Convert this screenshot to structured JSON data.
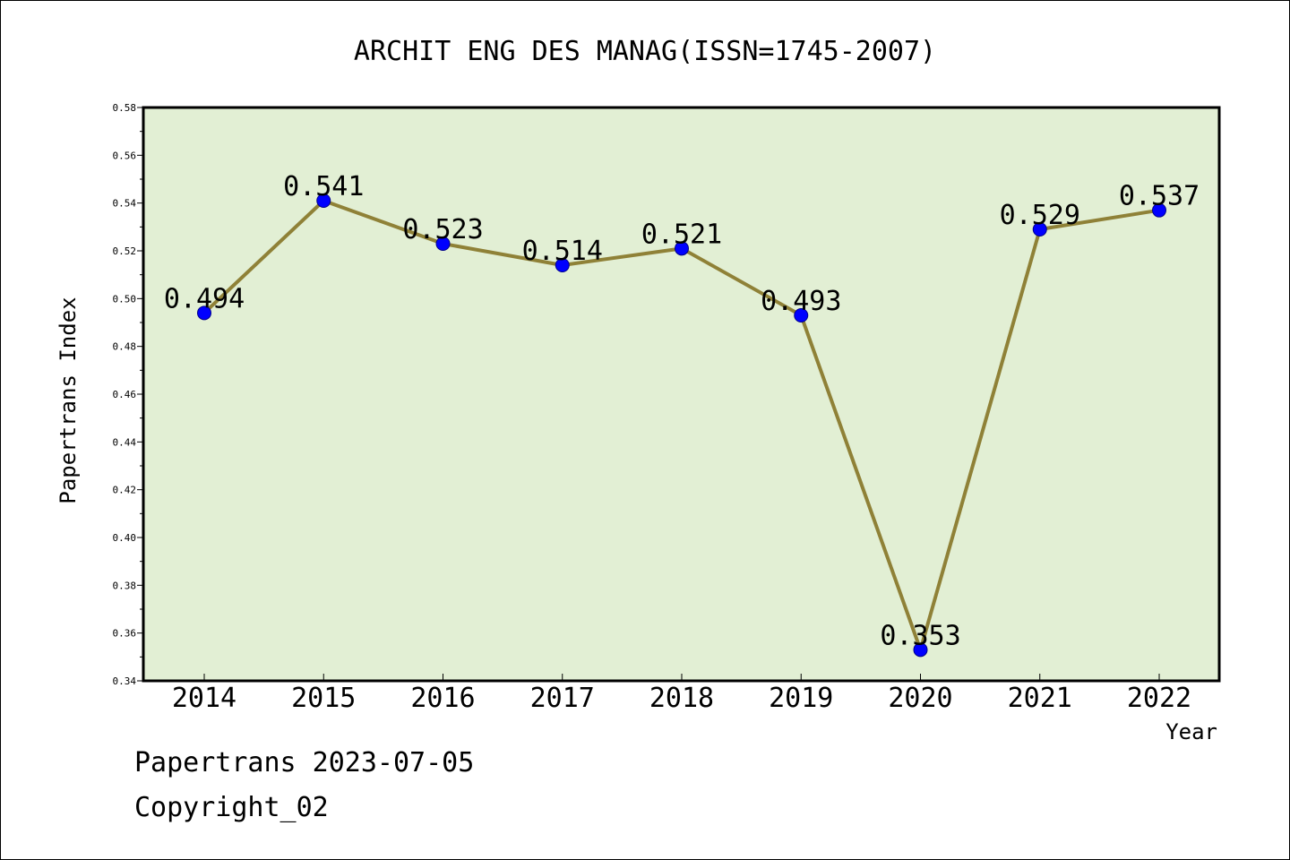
{
  "chart_data": {
    "type": "line",
    "title": "ARCHIT ENG DES MANAG(ISSN=1745-2007)",
    "xlabel": "Year",
    "ylabel": "Papertrans Index",
    "categories": [
      "2014",
      "2015",
      "2016",
      "2017",
      "2018",
      "2019",
      "2020",
      "2021",
      "2022"
    ],
    "series": [
      {
        "values": [
          0.494,
          0.541,
          0.523,
          0.514,
          0.521,
          0.493,
          0.353,
          0.529,
          0.537
        ],
        "data_labels": [
          "0.494",
          "0.541",
          "0.523",
          "0.514",
          "0.521",
          "0.493",
          "0.353",
          "0.529",
          "0.537"
        ]
      }
    ],
    "ylim": [
      0.34,
      0.58
    ],
    "y_ticks": [
      "0.34",
      "0.36",
      "0.38",
      "0.40",
      "0.42",
      "0.44",
      "0.46",
      "0.48",
      "0.50",
      "0.52",
      "0.54",
      "0.56",
      "0.58"
    ],
    "legend": "none",
    "grid": false,
    "colors": {
      "plot_background": "#e2efd4",
      "line": "#8f8137",
      "marker_fill": "#0000ff",
      "marker_edge": "#00008b"
    }
  },
  "footer": {
    "source": "Papertrans 2023-07-05",
    "copyright": "Copyright_02"
  }
}
